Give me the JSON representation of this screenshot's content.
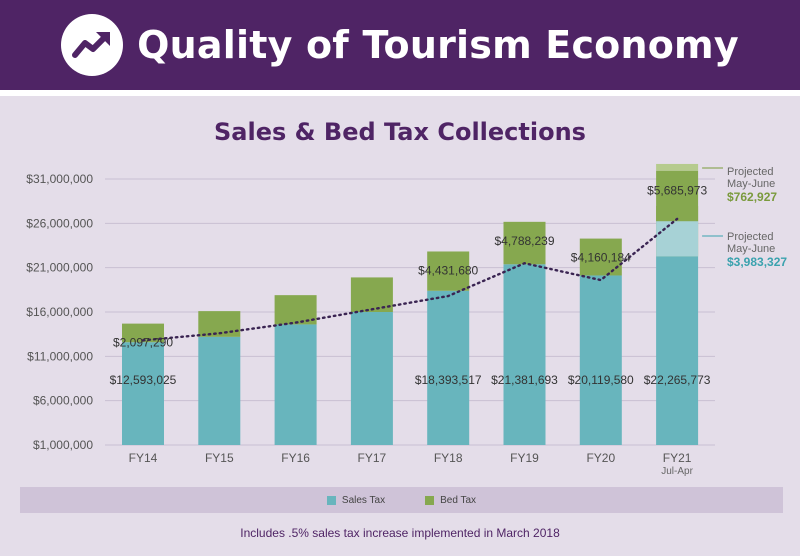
{
  "header": {
    "title": "Quality of Tourism Economy",
    "icon": "trending-up-icon"
  },
  "colors": {
    "banner": "#4f2465",
    "sales": "#68b5bd",
    "bed": "#86a84f",
    "sales_projected": "#a7d2d6",
    "bed_projected": "#b6cb8e",
    "trend": "#3a2452",
    "projected_sales_text": "#3aa2ae",
    "projected_bed_text": "#7a9a3c"
  },
  "chart_data": {
    "type": "bar",
    "stacked": true,
    "title": "Sales & Bed Tax Collections",
    "categories": [
      "FY14",
      "FY15",
      "FY16",
      "FY17",
      "FY18",
      "FY19",
      "FY20",
      "FY21"
    ],
    "category_sublabels": [
      "",
      "",
      "",
      "",
      "",
      "",
      "",
      "Jul-Apr"
    ],
    "series": [
      {
        "name": "Sales Tax",
        "values": [
          12593025,
          13200000,
          14600000,
          16000000,
          18393517,
          21381693,
          20119580,
          22265773
        ]
      },
      {
        "name": "Bed Tax",
        "values": [
          2097290,
          2900000,
          3300000,
          3900000,
          4431680,
          4788239,
          4160184,
          5685973
        ]
      }
    ],
    "sales_labels": [
      "$12,593,025",
      "",
      "",
      "",
      "$18,393,517",
      "$21,381,693",
      "$20,119,580",
      "$22,265,773"
    ],
    "bed_labels": [
      "$2,097,290",
      "",
      "",
      "",
      "$4,431,680",
      "$4,788,239",
      "$4,160,184",
      "$5,685,973"
    ],
    "projected": {
      "sales_tax": 3983327,
      "bed_tax": 762927,
      "sales_label": "$3,983,327",
      "bed_label": "$762,927",
      "caption_line1": "Projected",
      "caption_line2": "May-June"
    },
    "trend_line": {
      "style": "dotted",
      "values": [
        12800000,
        13600000,
        14800000,
        16300000,
        17800000,
        21500000,
        19600000,
        26500000
      ]
    },
    "yaxis": {
      "ylim": [
        1000000,
        32000000
      ],
      "ticks": [
        1000000,
        6000000,
        11000000,
        16000000,
        21000000,
        26000000,
        31000000
      ],
      "tick_labels": [
        "$1,000,000",
        "$6,000,000",
        "$11,000,000",
        "$16,000,000",
        "$21,000,000",
        "$26,000,000",
        "$31,000,000"
      ]
    },
    "legend": [
      {
        "label": "Sales Tax",
        "color": "#68b5bd"
      },
      {
        "label": "Bed Tax",
        "color": "#86a84f"
      }
    ],
    "grid": true,
    "footnote": "Includes .5% sales tax increase implemented in March 2018"
  }
}
